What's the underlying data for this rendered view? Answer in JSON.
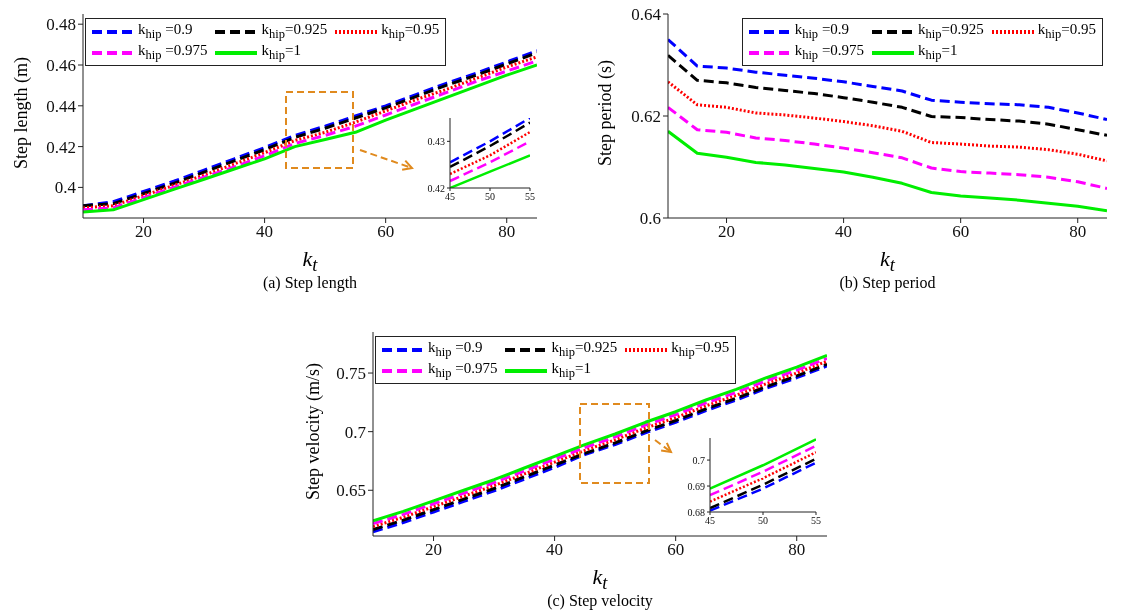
{
  "chart_data": [
    {
      "type": "line",
      "xlabel": "k$_{t}$",
      "ylabel": "Step length (m)",
      "annotations": [
        "(a) Step length"
      ],
      "legend": "top left",
      "xlim": [
        10,
        85
      ],
      "ylim": [
        0.385,
        0.485
      ],
      "xticks": [
        20,
        40,
        60,
        80
      ],
      "yticks": [
        0.4,
        0.42,
        0.44,
        0.46,
        0.48
      ],
      "x": [
        10,
        15,
        20,
        25,
        30,
        35,
        40,
        45,
        50,
        55,
        60,
        65,
        70,
        75,
        80,
        85
      ],
      "series": [
        {
          "name": "k$_{hip}$ =0.9",
          "color": "#0000ff",
          "line_style": "dashed",
          "values": [
            0.391,
            0.393,
            0.398,
            0.403,
            0.4085,
            0.414,
            0.4195,
            0.4255,
            0.43,
            0.435,
            0.44,
            0.4455,
            0.451,
            0.456,
            0.4615,
            0.467
          ]
        },
        {
          "name": "k$_{hip}$=0.925",
          "color": "#000000",
          "line_style": "dashed",
          "values": [
            0.391,
            0.392,
            0.397,
            0.402,
            0.4075,
            0.413,
            0.4185,
            0.4245,
            0.429,
            0.434,
            0.439,
            0.4445,
            0.45,
            0.455,
            0.4605,
            0.466
          ]
        },
        {
          "name": "k$_{hip}$=0.95",
          "color": "#ff0000",
          "line_style": "dotted",
          "values": [
            0.39,
            0.391,
            0.396,
            0.401,
            0.406,
            0.4115,
            0.417,
            0.423,
            0.427,
            0.432,
            0.4375,
            0.443,
            0.448,
            0.4535,
            0.459,
            0.464
          ]
        },
        {
          "name": "k$_{hip}$ =0.975",
          "color": "#ff00ff",
          "line_style": "dashed",
          "values": [
            0.389,
            0.39,
            0.395,
            0.4,
            0.405,
            0.41,
            0.4155,
            0.4215,
            0.4255,
            0.43,
            0.4355,
            0.441,
            0.4465,
            0.452,
            0.457,
            0.462
          ]
        },
        {
          "name": "k$_{hip}$=1",
          "color": "#00ee00",
          "line_style": "solid",
          "values": [
            0.388,
            0.389,
            0.394,
            0.399,
            0.404,
            0.409,
            0.414,
            0.42,
            0.4235,
            0.427,
            0.433,
            0.4385,
            0.444,
            0.4495,
            0.455,
            0.46
          ]
        }
      ]
    },
    {
      "type": "line",
      "xlim": [
        45,
        55
      ],
      "ylim": [
        0.42,
        0.435
      ],
      "xticks": [
        45,
        50,
        55
      ],
      "yticks": [
        0.42,
        0.43
      ],
      "x": [
        45,
        50,
        55
      ],
      "series": [
        {
          "color": "#0000ff",
          "line_style": "dashed",
          "values": [
            0.4255,
            0.43,
            0.435
          ]
        },
        {
          "color": "#000000",
          "line_style": "dashed",
          "values": [
            0.4245,
            0.429,
            0.434
          ]
        },
        {
          "color": "#ff0000",
          "line_style": "dotted",
          "values": [
            0.423,
            0.427,
            0.432
          ]
        },
        {
          "color": "#ff00ff",
          "line_style": "dashed",
          "values": [
            0.4215,
            0.4255,
            0.43
          ]
        },
        {
          "color": "#00ee00",
          "line_style": "solid",
          "values": [
            0.42,
            0.4235,
            0.427
          ]
        }
      ]
    },
    {
      "type": "line",
      "xlabel": "k$_{t}$",
      "ylabel": "Step period (s)",
      "annotations": [
        "(b) Step period"
      ],
      "legend": "top right",
      "xlim": [
        10,
        85
      ],
      "ylim": [
        0.6,
        0.64
      ],
      "xticks": [
        20,
        40,
        60,
        80
      ],
      "yticks": [
        0.6,
        0.62,
        0.64
      ],
      "x": [
        10,
        15,
        20,
        25,
        30,
        35,
        40,
        45,
        50,
        55,
        60,
        65,
        70,
        75,
        80,
        85
      ],
      "series": [
        {
          "name": "k$_{hip}$ =0.9",
          "color": "#0000ff",
          "line_style": "dashed",
          "values": [
            0.635,
            0.6298,
            0.6294,
            0.6286,
            0.628,
            0.6274,
            0.6267,
            0.6258,
            0.6249,
            0.6231,
            0.6227,
            0.6224,
            0.6222,
            0.6217,
            0.6206,
            0.6193
          ]
        },
        {
          "name": "k$_{hip}$=0.925",
          "color": "#000000",
          "line_style": "dashed",
          "values": [
            0.6319,
            0.627,
            0.6265,
            0.6256,
            0.625,
            0.6244,
            0.6236,
            0.6227,
            0.6217,
            0.6199,
            0.6197,
            0.6193,
            0.619,
            0.6184,
            0.6173,
            0.6162
          ]
        },
        {
          "name": "k$_{hip}$=0.95",
          "color": "#ff0000",
          "line_style": "dotted",
          "values": [
            0.6267,
            0.6222,
            0.6217,
            0.6206,
            0.6202,
            0.6196,
            0.6189,
            0.6181,
            0.617,
            0.6148,
            0.6145,
            0.6141,
            0.6139,
            0.6134,
            0.6125,
            0.6112
          ]
        },
        {
          "name": "k$_{hip}$ =0.975",
          "color": "#ff00ff",
          "line_style": "dashed",
          "values": [
            0.6217,
            0.6173,
            0.6168,
            0.6157,
            0.6152,
            0.6145,
            0.6137,
            0.6128,
            0.6118,
            0.6098,
            0.6091,
            0.6088,
            0.6085,
            0.608,
            0.6071,
            0.6058
          ]
        },
        {
          "name": "k$_{hip}$=1",
          "color": "#00ee00",
          "line_style": "solid",
          "values": [
            0.617,
            0.6127,
            0.6119,
            0.6109,
            0.6104,
            0.6097,
            0.609,
            0.608,
            0.6068,
            0.605,
            0.6043,
            0.6039,
            0.6035,
            0.6029,
            0.6023,
            0.6014
          ]
        }
      ]
    },
    {
      "type": "line",
      "xlabel": "k$_{t}$",
      "ylabel": "Step velocity (m/s)",
      "annotations": [
        "(c) Step velocity"
      ],
      "legend": "top left",
      "xlim": [
        10,
        85
      ],
      "ylim": [
        0.611,
        0.785
      ],
      "xticks": [
        20,
        40,
        60,
        80
      ],
      "yticks": [
        0.65,
        0.7,
        0.75
      ],
      "x": [
        10,
        15,
        20,
        25,
        30,
        35,
        40,
        45,
        50,
        55,
        60,
        65,
        70,
        75,
        80,
        85
      ],
      "series": [
        {
          "name": "k$_{hip}$ =0.9",
          "color": "#0000ff",
          "line_style": "dashed",
          "values": [
            0.6145,
            0.6225,
            0.6315,
            0.6405,
            0.6495,
            0.6595,
            0.6695,
            0.6805,
            0.689,
            0.699,
            0.708,
            0.718,
            0.727,
            0.737,
            0.746,
            0.756
          ]
        },
        {
          "name": "k$_{hip}$=0.925",
          "color": "#000000",
          "line_style": "dashed",
          "values": [
            0.6165,
            0.6245,
            0.6335,
            0.6425,
            0.6515,
            0.6615,
            0.6715,
            0.6815,
            0.6905,
            0.7005,
            0.7095,
            0.7195,
            0.7285,
            0.7385,
            0.7475,
            0.7575
          ]
        },
        {
          "name": "k$_{hip}$=0.95",
          "color": "#ff0000",
          "line_style": "dotted",
          "values": [
            0.619,
            0.627,
            0.636,
            0.645,
            0.654,
            0.664,
            0.674,
            0.684,
            0.693,
            0.703,
            0.712,
            0.722,
            0.731,
            0.741,
            0.75,
            0.76
          ]
        },
        {
          "name": "k$_{hip}$ =0.975",
          "color": "#ff00ff",
          "line_style": "dashed",
          "values": [
            0.6215,
            0.6295,
            0.6385,
            0.6475,
            0.6565,
            0.6665,
            0.6765,
            0.6865,
            0.6955,
            0.7055,
            0.7145,
            0.7245,
            0.7335,
            0.7435,
            0.7525,
            0.7625
          ]
        },
        {
          "name": "k$_{hip}$=1",
          "color": "#00ee00",
          "line_style": "solid",
          "values": [
            0.624,
            0.632,
            0.641,
            0.65,
            0.659,
            0.669,
            0.679,
            0.689,
            0.698,
            0.708,
            0.717,
            0.727,
            0.736,
            0.746,
            0.755,
            0.765
          ]
        }
      ]
    },
    {
      "type": "line",
      "xlim": [
        45,
        55
      ],
      "ylim": [
        0.68,
        0.7085
      ],
      "xticks": [
        45,
        50,
        55
      ],
      "yticks": [
        0.68,
        0.69,
        0.7
      ],
      "x": [
        45,
        50,
        55
      ],
      "series": [
        {
          "color": "#0000ff",
          "line_style": "dashed",
          "values": [
            0.6805,
            0.689,
            0.699
          ]
        },
        {
          "color": "#000000",
          "line_style": "dashed",
          "values": [
            0.6815,
            0.6905,
            0.7005
          ]
        },
        {
          "color": "#ff0000",
          "line_style": "dotted",
          "values": [
            0.684,
            0.693,
            0.703
          ]
        },
        {
          "color": "#ff00ff",
          "line_style": "dashed",
          "values": [
            0.6865,
            0.6955,
            0.7055
          ]
        },
        {
          "color": "#00ee00",
          "line_style": "solid",
          "values": [
            0.689,
            0.698,
            0.708
          ]
        }
      ]
    }
  ]
}
